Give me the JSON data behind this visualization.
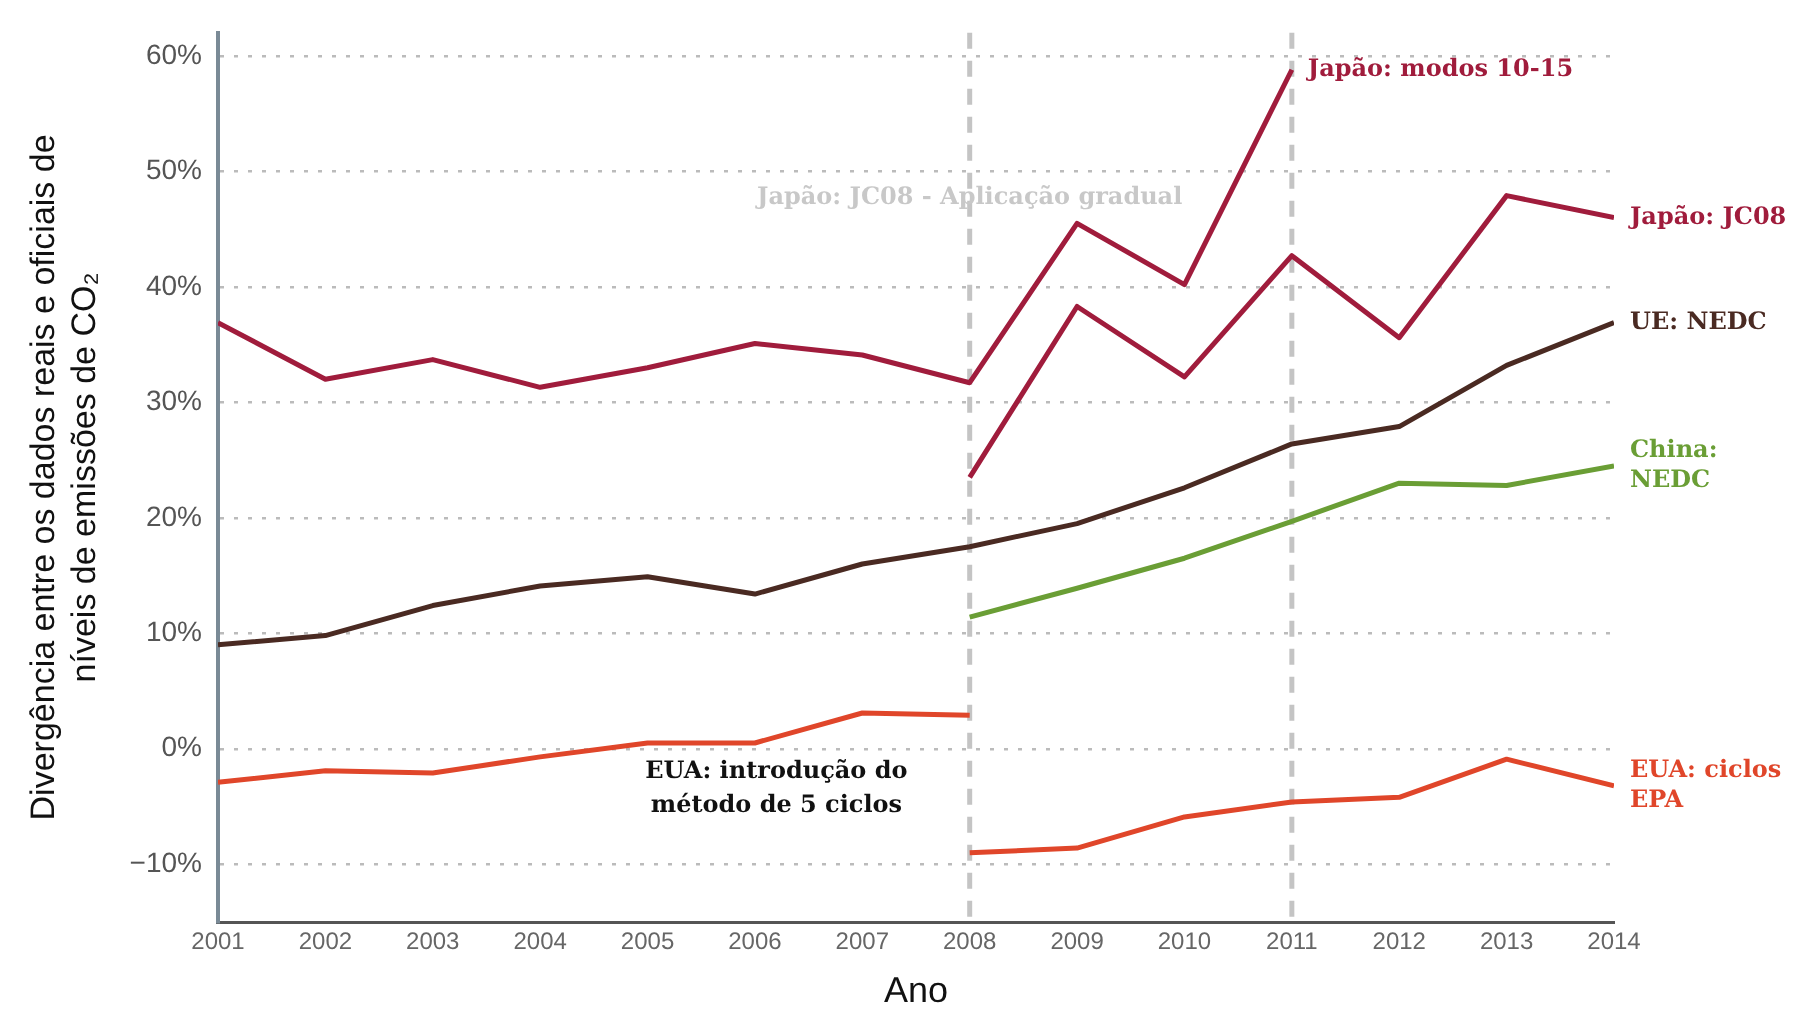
{
  "chart_data": {
    "type": "line",
    "xlabel": "Ano",
    "ylabel": "Divergência entre os dados reais e oficiais de níveis de emissões de CO₂",
    "xlim": [
      2001,
      2014
    ],
    "xticks": [
      2001,
      2002,
      2003,
      2004,
      2005,
      2006,
      2007,
      2008,
      2009,
      2010,
      2011,
      2012,
      2013,
      2014
    ],
    "ylim": [
      -15,
      62
    ],
    "yticks": [
      {
        "value": -10,
        "label": "−10%"
      },
      {
        "value": 0,
        "label": "0%"
      },
      {
        "value": 10,
        "label": "10%"
      },
      {
        "value": 20,
        "label": "20%"
      },
      {
        "value": 30,
        "label": "30%"
      },
      {
        "value": 40,
        "label": "40%"
      },
      {
        "value": 50,
        "label": "50%"
      },
      {
        "value": 60,
        "label": "60%"
      }
    ],
    "grid": "y",
    "legend": false,
    "marker": "none",
    "line_style": "solid",
    "series": [
      {
        "name": "Japão: modos 10-15",
        "color": "#a01c3c",
        "x": [
          2001,
          2002,
          2003,
          2004,
          2005,
          2006,
          2007,
          2008,
          2009,
          2010,
          2011
        ],
        "values": [
          36.9,
          32.0,
          33.7,
          31.3,
          33.0,
          35.1,
          34.1,
          31.7,
          45.5,
          40.2,
          58.8
        ]
      },
      {
        "name": "Japão: JC08",
        "color": "#a01c3c",
        "x": [
          2008,
          2009,
          2010,
          2011,
          2012,
          2013,
          2014
        ],
        "values": [
          23.5,
          38.3,
          32.2,
          42.7,
          35.6,
          47.9,
          46.0
        ]
      },
      {
        "name": "UE: NEDC",
        "color": "#4a2a22",
        "x": [
          2001,
          2002,
          2003,
          2004,
          2005,
          2006,
          2007,
          2008,
          2009,
          2010,
          2011,
          2012,
          2013,
          2014
        ],
        "values": [
          9.0,
          9.8,
          12.4,
          14.1,
          14.9,
          13.4,
          16.0,
          17.5,
          19.5,
          22.6,
          26.4,
          27.9,
          33.2,
          36.9
        ]
      },
      {
        "name": "China: NEDC",
        "color": "#6a9e35",
        "x": [
          2008,
          2009,
          2010,
          2011,
          2012,
          2013,
          2014
        ],
        "values": [
          11.4,
          13.9,
          16.5,
          19.7,
          23.0,
          22.8,
          24.5
        ]
      },
      {
        "color": "#e0462a",
        "x": [
          2001,
          2002,
          2003,
          2004,
          2005,
          2006,
          2007,
          2008
        ],
        "values": [
          -2.9,
          -1.9,
          -2.1,
          -0.7,
          0.5,
          0.5,
          3.1,
          2.9
        ]
      },
      {
        "name": "EUA: ciclos EPA",
        "color": "#e0462a",
        "x": [
          2008,
          2009,
          2010,
          2011,
          2012,
          2013,
          2014
        ],
        "values": [
          -9.0,
          -8.6,
          -5.9,
          -4.6,
          -4.2,
          -0.9,
          -3.2
        ]
      }
    ],
    "ref_lines": [
      {
        "axis": "x",
        "value": 2008,
        "color": "#c4c4c4",
        "line_style": "dashed"
      },
      {
        "axis": "x",
        "value": 2011,
        "color": "#c4c4c4",
        "line_style": "dashed"
      }
    ],
    "annotations": [
      {
        "text": "Japão: JC08 - Aplicação gradual",
        "x": 2008,
        "y": 47.7
      },
      "EUA: introdução do método de 5 ciclos"
    ]
  }
}
